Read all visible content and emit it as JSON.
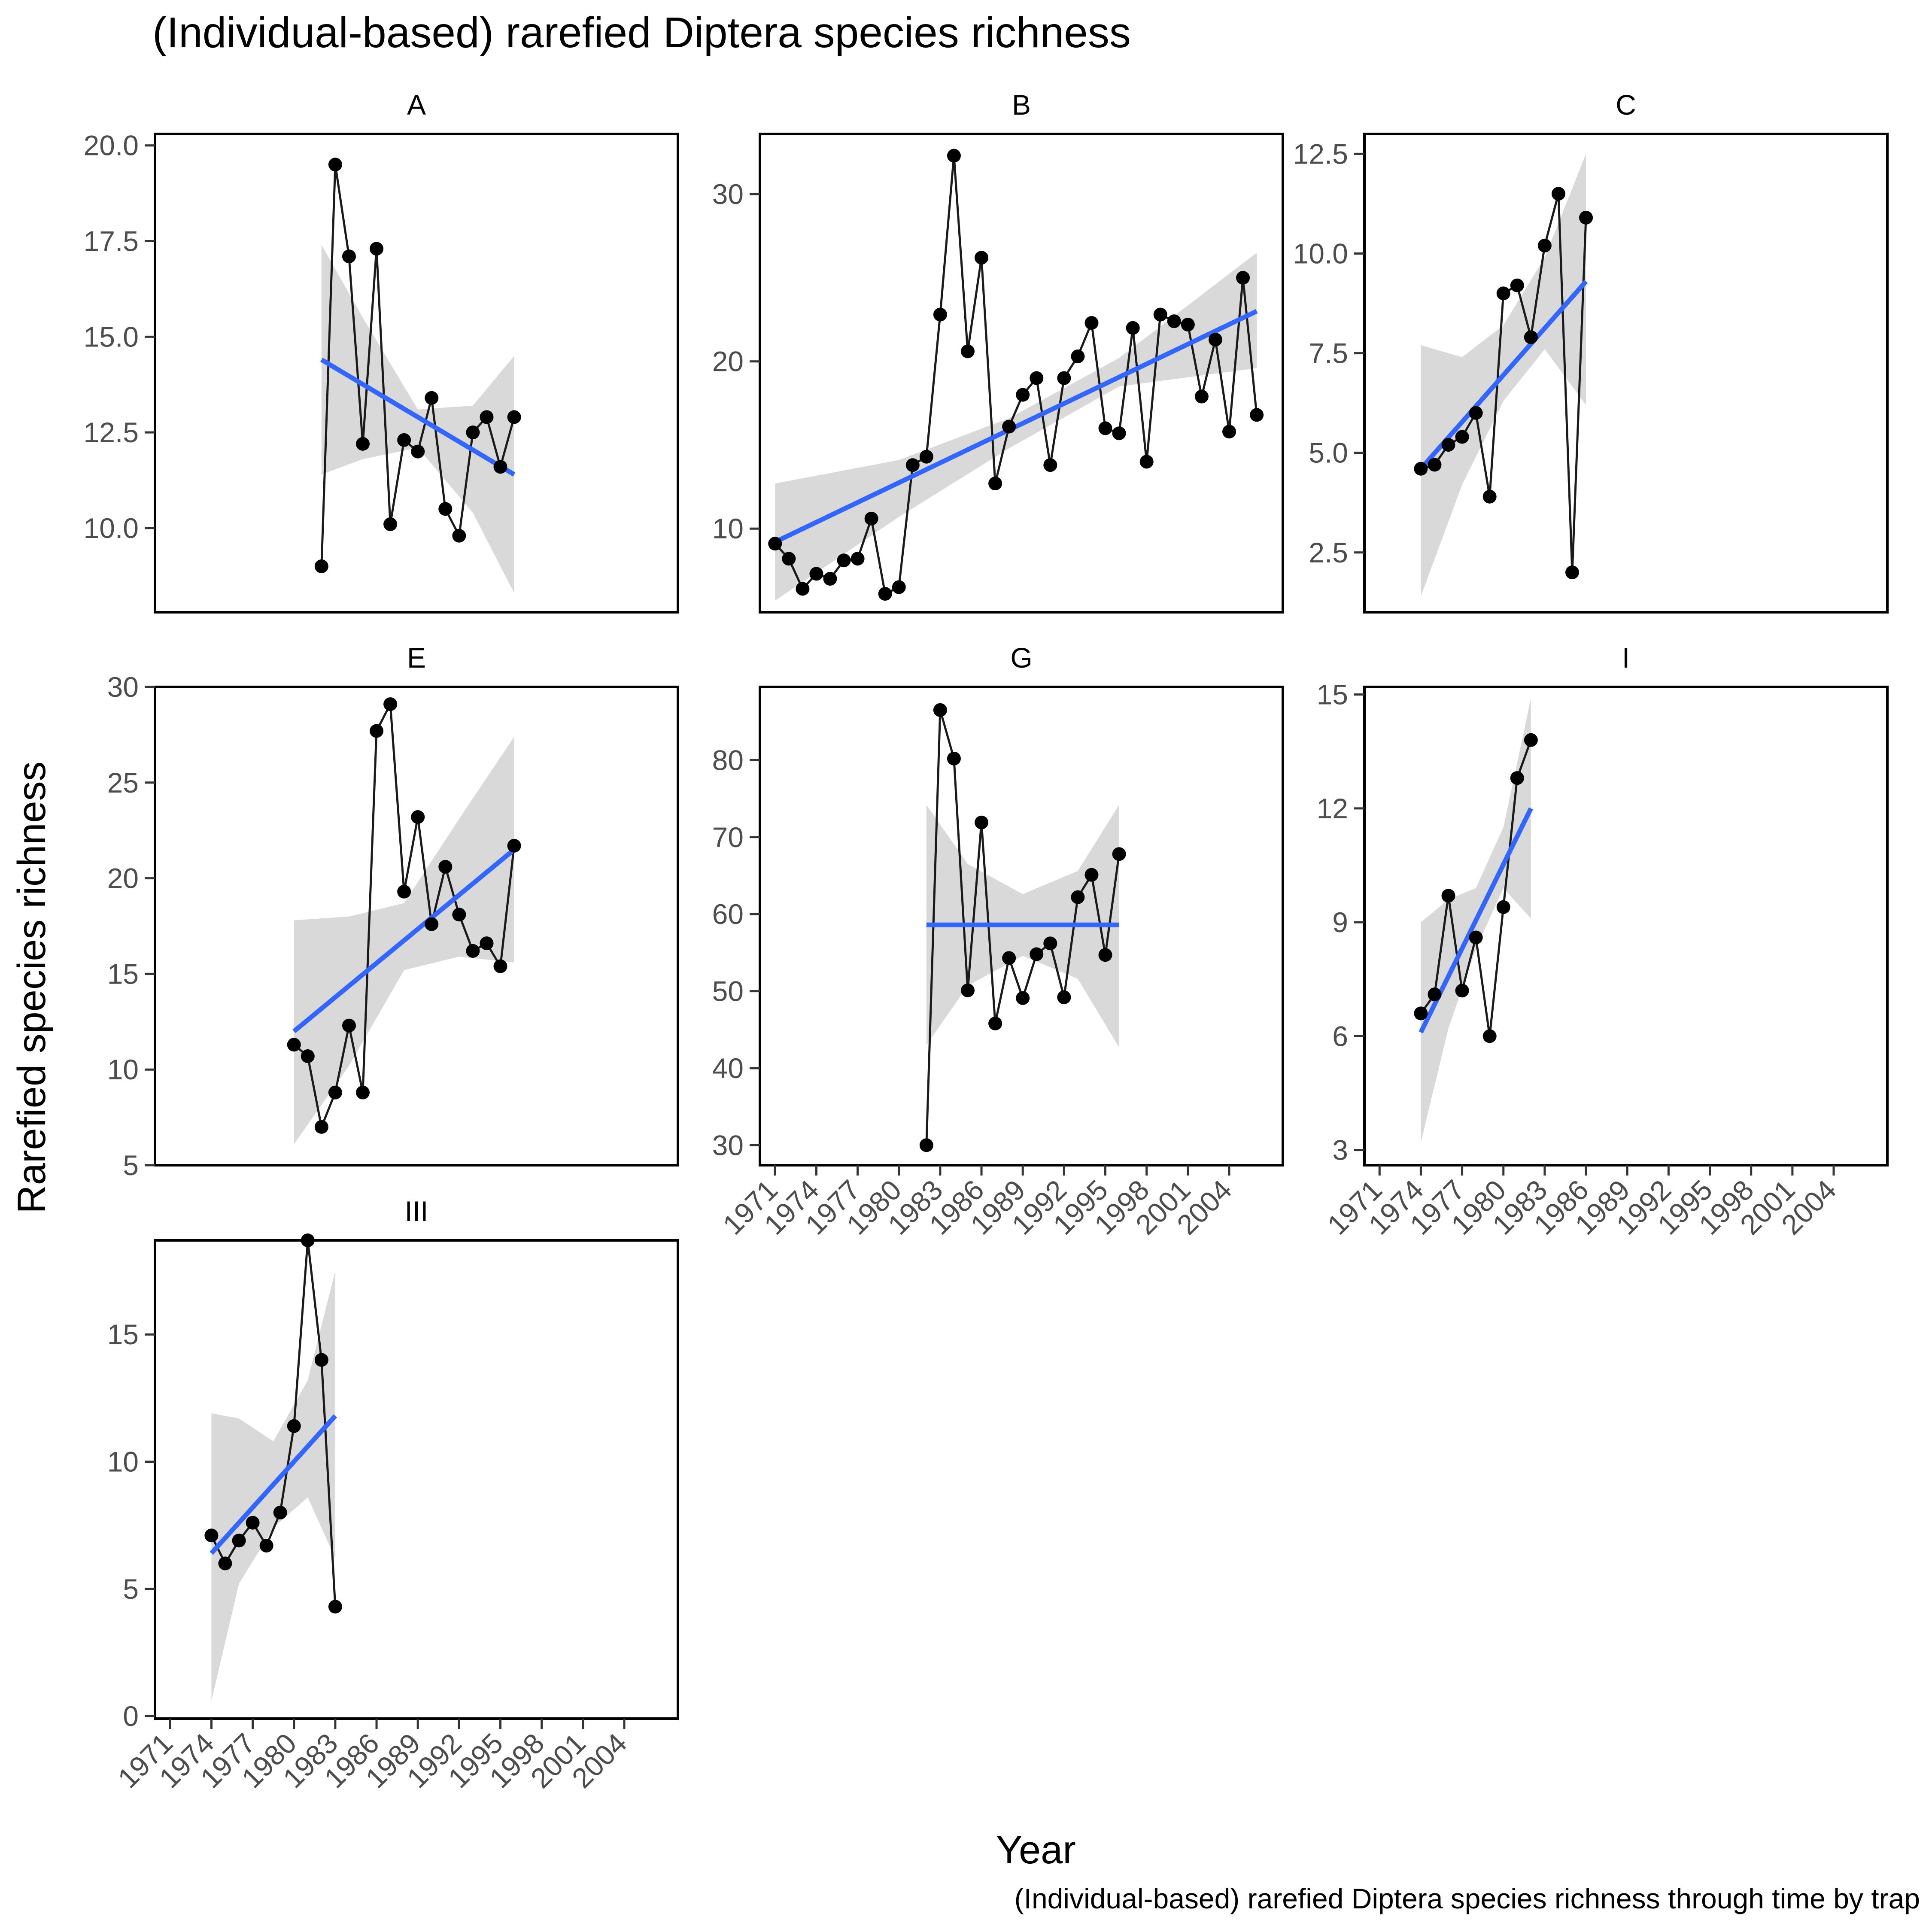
{
  "title": "(Individual-based) rarefied Diptera species richness",
  "xlabel": "Year",
  "ylabel": "Rarefied species richness",
  "caption": "(Individual-based) rarefied Diptera species richness through time by trap",
  "x_ticks": [
    1971,
    1974,
    1977,
    1980,
    1983,
    1986,
    1989,
    1992,
    1995,
    1998,
    2001,
    2004
  ],
  "xlim": [
    1969.9,
    2007.9
  ],
  "colors": {
    "points": "#000000",
    "trend_line": "#3366ff",
    "ribbon": "#d9d9d9",
    "panel_border": "#000000",
    "tick_text": "#4d4d4d"
  },
  "chart_data": [
    {
      "type": "line",
      "panel": "A",
      "ylim": [
        7.8,
        20.3
      ],
      "y_ticks": [
        10.0,
        12.5,
        15.0,
        17.5,
        20.0
      ],
      "y_decimals": 1,
      "x": [
        1982,
        1983,
        1984,
        1985,
        1986,
        1987,
        1988,
        1989,
        1990,
        1991,
        1992,
        1993,
        1994,
        1995,
        1996
      ],
      "values": [
        9.0,
        19.5,
        17.1,
        12.2,
        17.3,
        10.1,
        12.3,
        12.0,
        13.4,
        10.5,
        9.8,
        12.5,
        12.9,
        11.6,
        12.9
      ],
      "trend": {
        "x": [
          1982,
          1996
        ],
        "y": [
          14.4,
          11.4
        ]
      },
      "ribbon": {
        "x": [
          1982,
          1985,
          1989,
          1993,
          1996
        ],
        "lower": [
          11.4,
          11.8,
          12.1,
          10.4,
          8.3
        ],
        "upper": [
          17.4,
          15.5,
          13.1,
          13.2,
          14.5
        ]
      }
    },
    {
      "type": "line",
      "panel": "B",
      "ylim": [
        5.0,
        33.6
      ],
      "y_ticks": [
        10,
        20,
        30
      ],
      "y_decimals": 0,
      "x": [
        1971,
        1972,
        1973,
        1974,
        1975,
        1976,
        1977,
        1978,
        1979,
        1980,
        1981,
        1982,
        1983,
        1984,
        1985,
        1986,
        1987,
        1988,
        1989,
        1990,
        1991,
        1992,
        1993,
        1994,
        1995,
        1996,
        1997,
        1998,
        1999,
        2000,
        2001,
        2002,
        2003,
        2004,
        2005,
        2006
      ],
      "values": [
        9.1,
        8.2,
        6.4,
        7.3,
        7.0,
        8.1,
        8.2,
        10.6,
        6.1,
        6.5,
        13.8,
        14.3,
        22.8,
        32.3,
        20.6,
        26.2,
        12.7,
        16.1,
        18.0,
        19.0,
        13.8,
        19.0,
        20.3,
        22.3,
        16.0,
        15.7,
        22.0,
        14.0,
        22.8,
        22.4,
        22.2,
        17.9,
        21.3,
        15.8,
        25.0,
        16.8
      ],
      "trend": {
        "x": [
          1971,
          2006
        ],
        "y": [
          9.2,
          23.0
        ]
      },
      "ribbon": {
        "x": [
          1971,
          1980,
          1988,
          1996,
          2006
        ],
        "lower": [
          5.7,
          10.7,
          14.8,
          18.5,
          19.6
        ],
        "upper": [
          12.7,
          14.1,
          16.6,
          20.2,
          26.5
        ]
      }
    },
    {
      "type": "line",
      "panel": "C",
      "ylim": [
        1.0,
        13.0
      ],
      "y_ticks": [
        2.5,
        5.0,
        7.5,
        10.0,
        12.5
      ],
      "y_decimals": 1,
      "x": [
        1974,
        1975,
        1976,
        1977,
        1978,
        1979,
        1980,
        1981,
        1982,
        1983,
        1984,
        1985,
        1986
      ],
      "values": [
        4.6,
        4.7,
        5.2,
        5.4,
        6.0,
        3.9,
        9.0,
        9.2,
        7.9,
        10.2,
        11.5,
        2.0,
        10.9
      ],
      "trend": {
        "x": [
          1974,
          1986
        ],
        "y": [
          4.6,
          9.3
        ]
      },
      "ribbon": {
        "x": [
          1974,
          1977,
          1980,
          1983,
          1986
        ],
        "lower": [
          1.4,
          4.2,
          6.3,
          7.6,
          6.2
        ],
        "upper": [
          7.7,
          7.4,
          8.2,
          9.9,
          12.5
        ]
      }
    },
    {
      "type": "line",
      "panel": "E",
      "ylim": [
        5.0,
        30.0
      ],
      "y_ticks": [
        5,
        10,
        15,
        20,
        25,
        30
      ],
      "y_decimals": 0,
      "x": [
        1980,
        1981,
        1982,
        1983,
        1984,
        1985,
        1986,
        1987,
        1988,
        1989,
        1990,
        1991,
        1992,
        1993,
        1994,
        1995,
        1996
      ],
      "values": [
        11.3,
        10.7,
        7.0,
        8.8,
        12.3,
        8.8,
        27.7,
        29.1,
        19.3,
        23.2,
        17.6,
        20.6,
        18.1,
        16.2,
        16.6,
        15.4,
        21.7
      ],
      "trend": {
        "x": [
          1980,
          1996
        ],
        "y": [
          12.0,
          21.5
        ]
      },
      "ribbon": {
        "x": [
          1980,
          1984,
          1988,
          1992,
          1996
        ],
        "lower": [
          6.1,
          10.2,
          15.2,
          15.9,
          15.6
        ],
        "upper": [
          17.8,
          18.0,
          18.7,
          23.1,
          27.4
        ]
      }
    },
    {
      "type": "line",
      "panel": "G",
      "ylim": [
        27.4,
        89.5
      ],
      "y_ticks": [
        30,
        40,
        50,
        60,
        70,
        80
      ],
      "y_decimals": 0,
      "x": [
        1982,
        1983,
        1984,
        1985,
        1986,
        1987,
        1988,
        1989,
        1990,
        1991,
        1992,
        1993,
        1994,
        1995,
        1996
      ],
      "values": [
        30.0,
        86.5,
        80.2,
        50.1,
        71.9,
        45.8,
        54.3,
        49.1,
        54.8,
        56.2,
        49.2,
        62.2,
        65.1,
        54.7,
        67.8
      ],
      "trend": {
        "x": [
          1982,
          1996
        ],
        "y": [
          58.6,
          58.6
        ]
      },
      "ribbon": {
        "x": [
          1982,
          1985,
          1989,
          1993,
          1996
        ],
        "lower": [
          43.0,
          50.7,
          54.6,
          51.6,
          42.7
        ],
        "upper": [
          74.2,
          66.5,
          62.6,
          65.6,
          74.2
        ]
      }
    },
    {
      "type": "line",
      "panel": "I",
      "ylim": [
        2.6,
        15.2
      ],
      "y_ticks": [
        3,
        6,
        9,
        12,
        15
      ],
      "y_decimals": 0,
      "x": [
        1974,
        1975,
        1976,
        1977,
        1978,
        1979,
        1980,
        1981,
        1982
      ],
      "values": [
        6.6,
        7.1,
        9.7,
        7.2,
        8.6,
        6.0,
        9.4,
        12.8,
        13.8
      ],
      "trend": {
        "x": [
          1974,
          1982
        ],
        "y": [
          6.1,
          12.0
        ]
      },
      "ribbon": {
        "x": [
          1974,
          1976,
          1978,
          1980,
          1982
        ],
        "lower": [
          3.2,
          6.2,
          8.3,
          9.9,
          9.1
        ],
        "upper": [
          9.0,
          9.6,
          9.9,
          11.5,
          14.9
        ]
      }
    },
    {
      "type": "line",
      "panel": "III",
      "ylim": [
        -0.1,
        18.7
      ],
      "y_ticks": [
        0,
        5,
        10,
        15
      ],
      "y_decimals": 0,
      "x": [
        1974,
        1975,
        1976,
        1977,
        1978,
        1979,
        1980,
        1981,
        1982,
        1983
      ],
      "values": [
        7.1,
        6.0,
        6.9,
        7.6,
        6.7,
        8.0,
        11.4,
        18.7,
        14.0,
        4.3
      ],
      "trend": {
        "x": [
          1974,
          1983
        ],
        "y": [
          6.4,
          11.8
        ]
      },
      "ribbon": {
        "x": [
          1974,
          1976,
          1978.5,
          1981,
          1983
        ],
        "lower": [
          0.6,
          5.2,
          7.4,
          8.6,
          6.2
        ],
        "upper": [
          11.9,
          11.7,
          10.8,
          13.2,
          17.5
        ]
      }
    }
  ]
}
